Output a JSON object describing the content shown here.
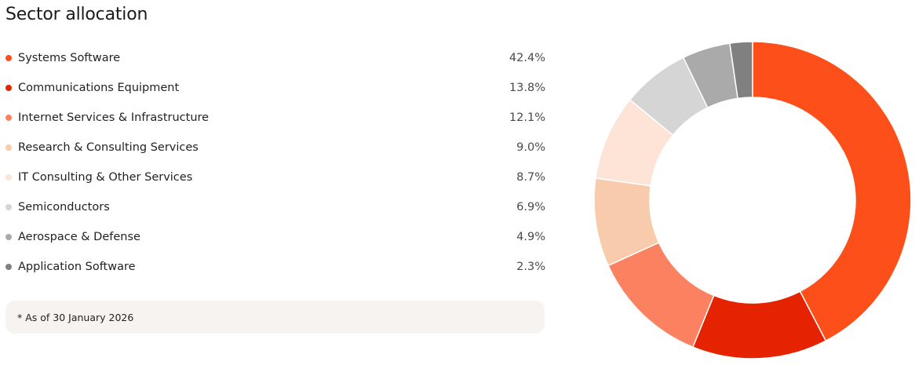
{
  "chart_data": {
    "type": "pie",
    "title": "Sector allocation",
    "categories": [
      "Systems Software",
      "Communications Equipment",
      "Internet Services & Infrastructure",
      "Research & Consulting Services",
      "IT Consulting & Other Services",
      "Semiconductors",
      "Aerospace & Defense",
      "Application Software"
    ],
    "values": [
      42.4,
      13.8,
      12.1,
      9.0,
      8.7,
      6.9,
      4.9,
      2.3
    ],
    "value_labels": [
      "42.4%",
      "13.8%",
      "12.1%",
      "9.0%",
      "8.7%",
      "6.9%",
      "4.9%",
      "2.3%"
    ],
    "colors": [
      "#fc4f1a",
      "#e52301",
      "#fc8161",
      "#f8cbac",
      "#fde4d7",
      "#d5d5d5",
      "#aaaaaa",
      "#808080"
    ],
    "style": "donut",
    "legend_position": "left",
    "footnote": "* As of 30 January 2026"
  }
}
